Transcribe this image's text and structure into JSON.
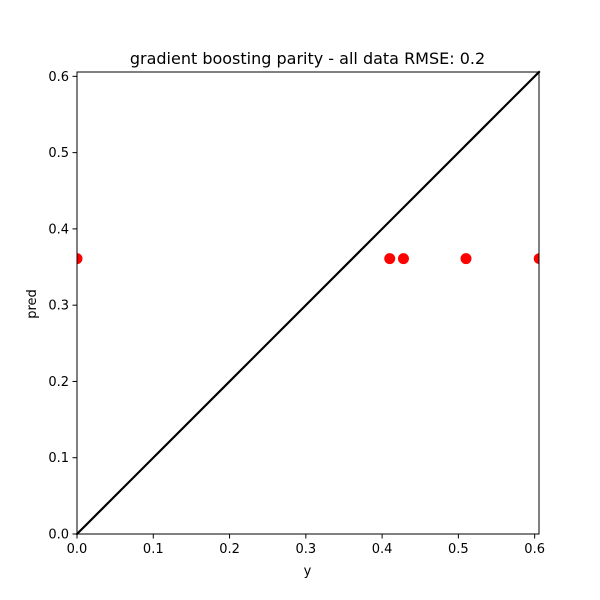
{
  "chart_data": {
    "type": "scatter",
    "title": "gradient boosting parity - all data RMSE: 0.2",
    "xlabel": "y",
    "ylabel": "pred",
    "xlim": [
      0,
      0.6057
    ],
    "ylim": [
      0,
      0.6057
    ],
    "xticks": [
      "0.0",
      "0.1",
      "0.2",
      "0.3",
      "0.4",
      "0.5",
      "0.6"
    ],
    "yticks": [
      "0.0",
      "0.1",
      "0.2",
      "0.3",
      "0.4",
      "0.5",
      "0.6"
    ],
    "grid": false,
    "legend": "none",
    "series": [
      {
        "marker": "circle",
        "color": "#ff0000",
        "points": [
          {
            "x": 0.0,
            "y": 0.361
          },
          {
            "x": 0.41,
            "y": 0.361
          },
          {
            "x": 0.428,
            "y": 0.361
          },
          {
            "x": 0.51,
            "y": 0.361
          },
          {
            "x": 0.606,
            "y": 0.361
          }
        ]
      }
    ],
    "reference_line": {
      "type": "identity",
      "color": "#000000",
      "from": [
        0,
        0
      ],
      "to": [
        0.6057,
        0.6057
      ]
    }
  }
}
